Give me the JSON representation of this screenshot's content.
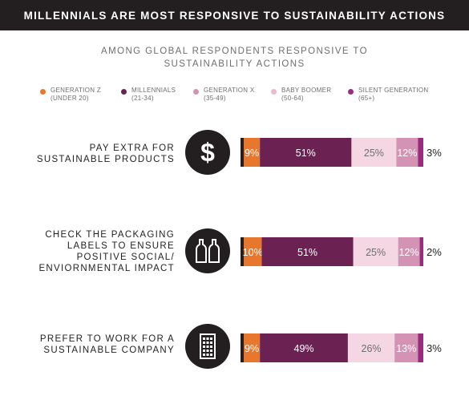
{
  "header": {
    "title": "MILLENNIALS ARE MOST RESPONSIVE TO SUSTAINABILITY ACTIONS"
  },
  "subtitle": {
    "line1": "AMONG GLOBAL RESPONDENTS RESPONSIVE TO",
    "line2": "SUSTAINABILITY ACTIONS"
  },
  "colors": {
    "gen_z": "#e8772e",
    "millennials": "#6b2152",
    "gen_x": "#f4d7e3",
    "baby_boomer": "#d493b4",
    "silent": "#9b2b80",
    "dark": "#231f20"
  },
  "legend": [
    {
      "line1": "GENERATION Z",
      "line2": "(UNDER 20)",
      "color": "#e8772e"
    },
    {
      "line1": "MILLENNIALS",
      "line2": "(21-34)",
      "color": "#6b2152"
    },
    {
      "line1": "GENERATION X",
      "line2": "(35-49)",
      "color": "#d493b4"
    },
    {
      "line1": "BABY BOOMER",
      "line2": "(50-64)",
      "color": "#e9b9cf"
    },
    {
      "line1": "SILENT GENERATION",
      "line2": "(65+)",
      "color": "#9b2b80"
    }
  ],
  "rows": [
    {
      "lines": [
        "PAY EXTRA FOR",
        "SUSTAINABLE PRODUCTS"
      ],
      "icon": "dollar-icon"
    },
    {
      "lines": [
        "CHECK THE PACKAGING",
        "LABELS TO ENSURE",
        "POSITIVE SOCIAL/",
        "ENVIORNMENTAL IMPACT"
      ],
      "icon": "bottles-icon"
    },
    {
      "lines": [
        "PREFER TO WORK FOR A",
        "SUSTAINABLE COMPANY"
      ],
      "icon": "building-icon"
    }
  ],
  "chart_data": {
    "type": "bar",
    "orientation": "horizontal-stacked",
    "categories": [
      "PAY EXTRA FOR SUSTAINABLE PRODUCTS",
      "CHECK THE PACKAGING LABELS TO ENSURE POSITIVE SOCIAL/ ENVIORNMENTAL IMPACT",
      "PREFER TO WORK FOR A SUSTAINABLE COMPANY"
    ],
    "series": [
      {
        "name": "GENERATION Z",
        "values": [
          9,
          10,
          9
        ],
        "labels": [
          "9%",
          "10%",
          "9%"
        ]
      },
      {
        "name": "MILLENNIALS",
        "values": [
          51,
          51,
          49
        ],
        "labels": [
          "51%",
          "51%",
          "49%"
        ]
      },
      {
        "name": "GENERATION X",
        "values": [
          25,
          25,
          26
        ],
        "labels": [
          "25%",
          "25%",
          "26%"
        ]
      },
      {
        "name": "BABY BOOMER",
        "values": [
          12,
          12,
          13
        ],
        "labels": [
          "12%",
          "12%",
          "13%"
        ]
      },
      {
        "name": "SILENT GENERATION",
        "values": [
          3,
          2,
          3
        ],
        "labels": [
          "3%",
          "2%",
          "3%"
        ]
      }
    ],
    "title": "MILLENNIALS ARE MOST RESPONSIVE TO SUSTAINABILITY ACTIONS",
    "subtitle": "AMONG GLOBAL RESPONDENTS RESPONSIVE TO SUSTAINABILITY ACTIONS",
    "xlabel": "",
    "ylabel": "",
    "grid": false,
    "legend_position": "top"
  }
}
